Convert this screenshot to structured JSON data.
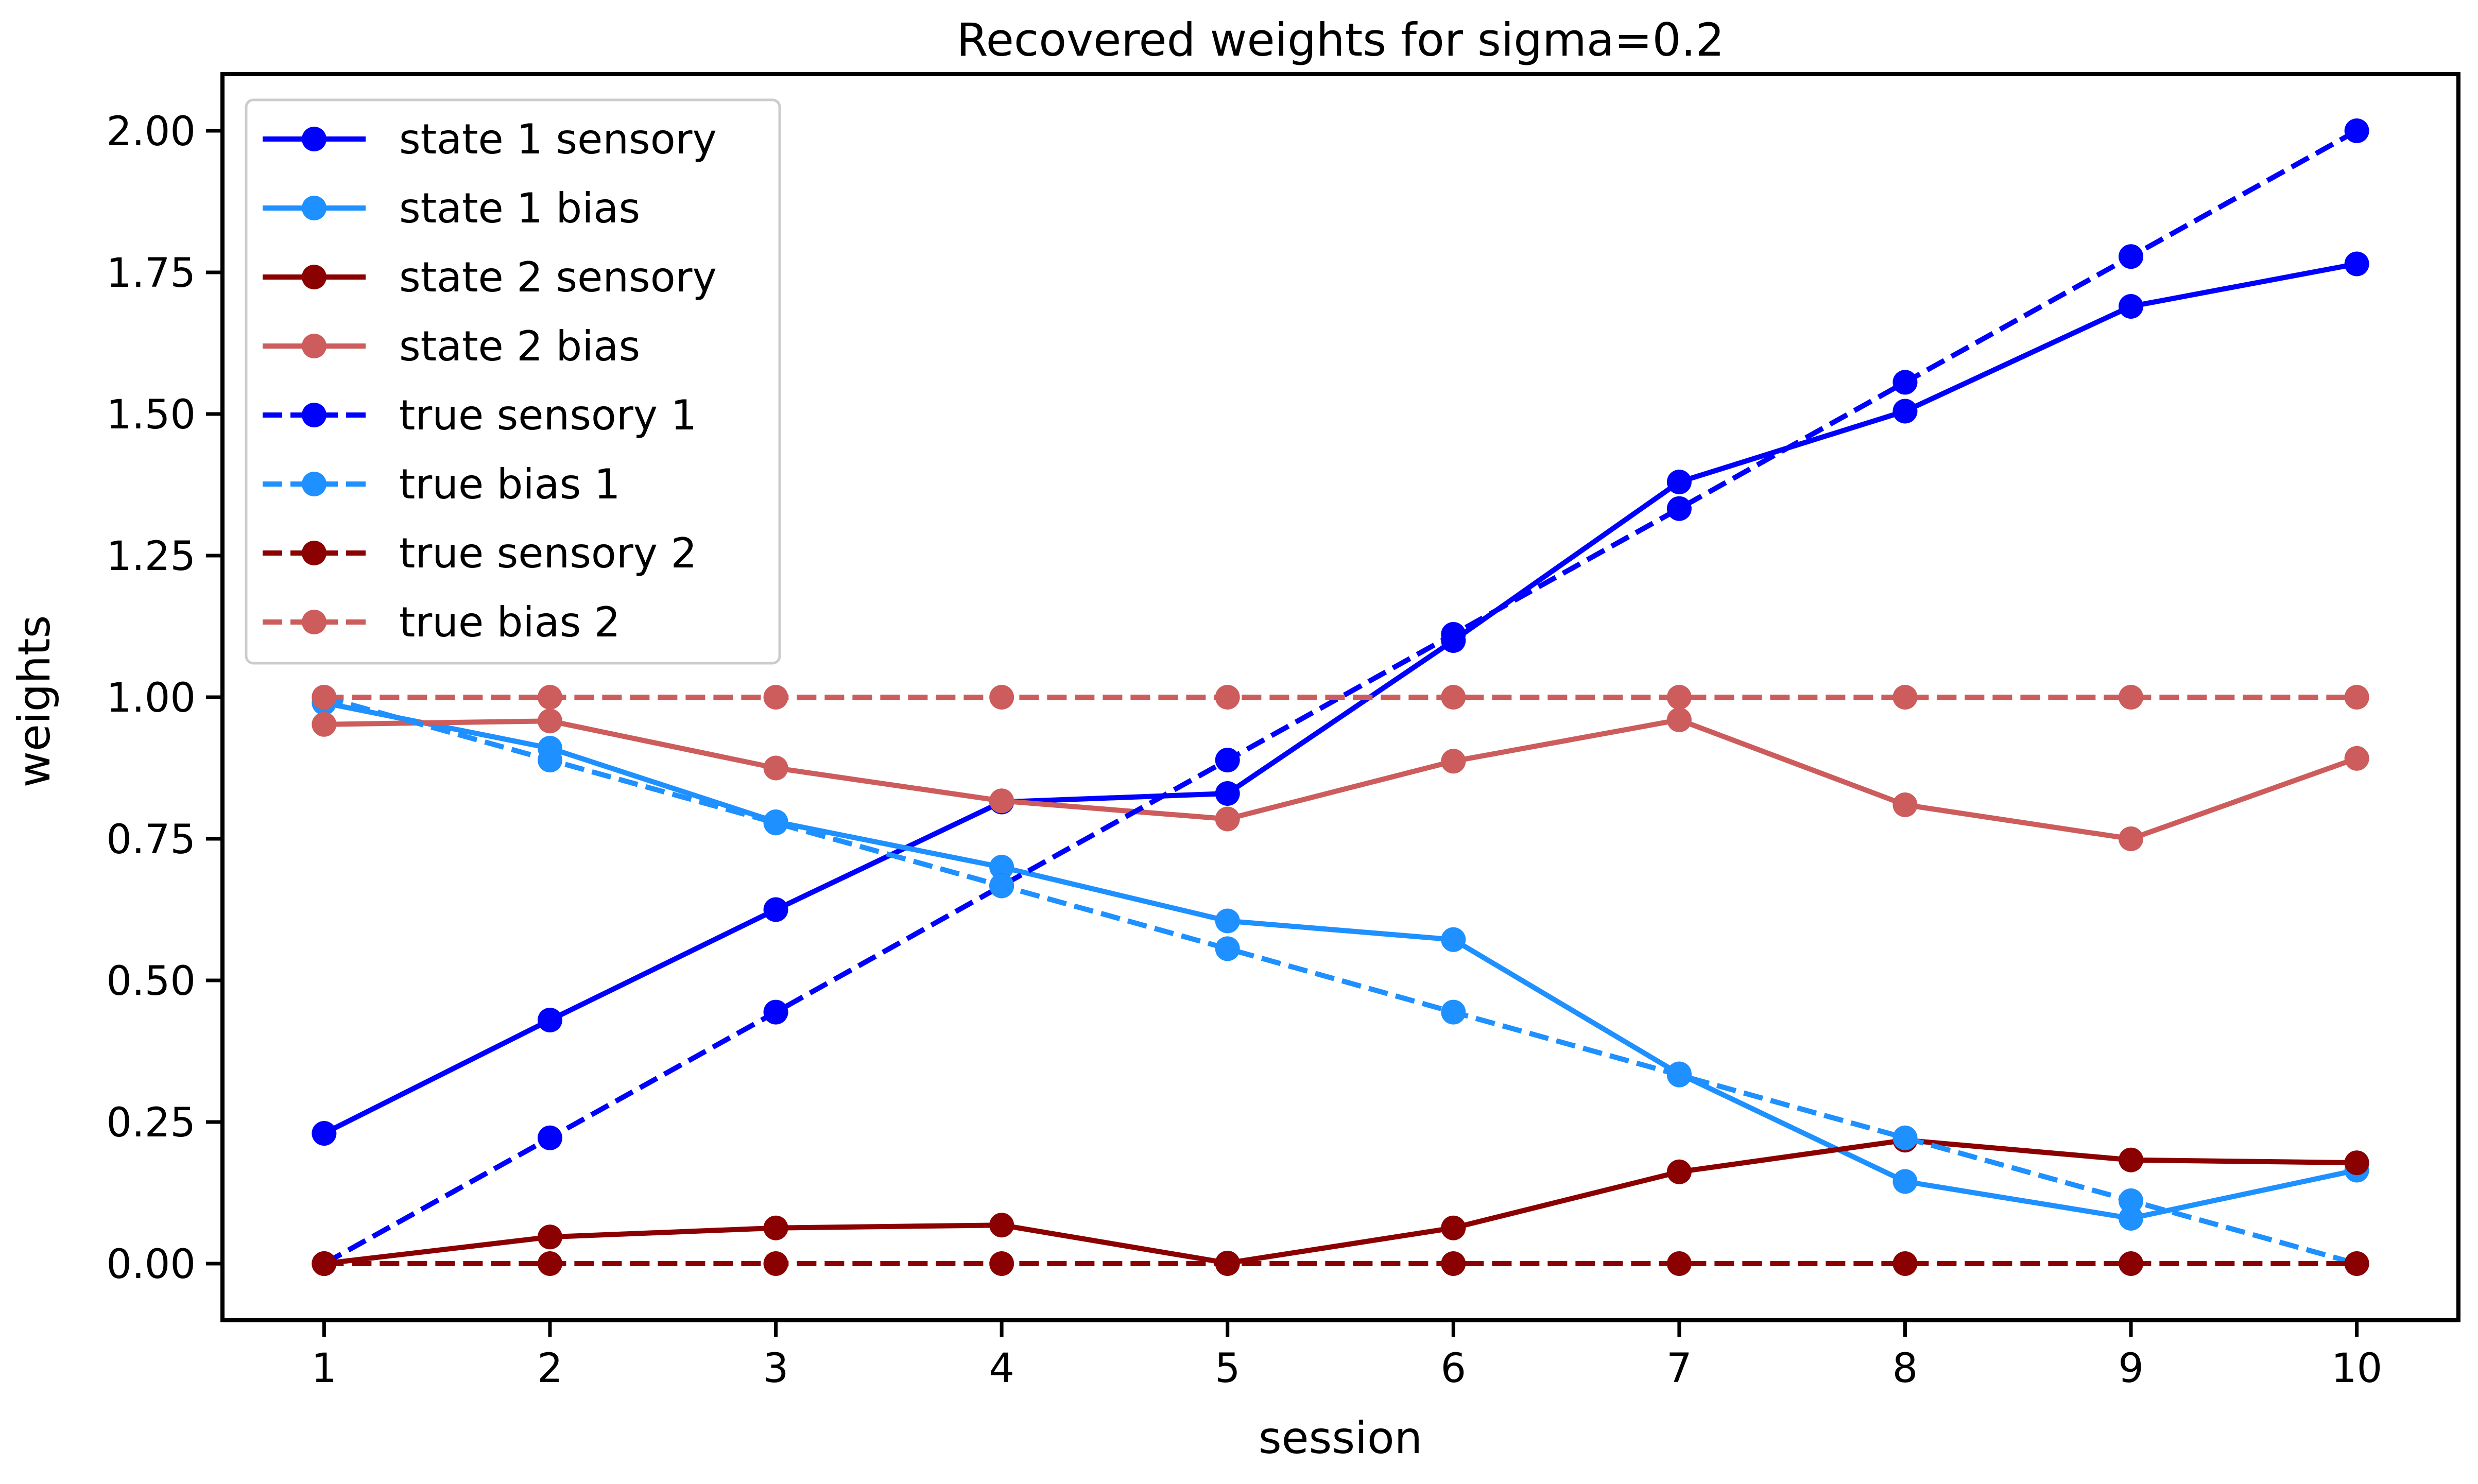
{
  "chart_data": {
    "type": "line",
    "title": "Recovered weights for sigma=0.2",
    "xlabel": "session",
    "ylabel": "weights",
    "x": [
      1,
      2,
      3,
      4,
      5,
      6,
      7,
      8,
      9,
      10
    ],
    "xlim": [
      0.55,
      10.45
    ],
    "ylim": [
      -0.1,
      2.1
    ],
    "xticks": [
      "1",
      "2",
      "3",
      "4",
      "5",
      "6",
      "7",
      "8",
      "9",
      "10"
    ],
    "yticks": [
      0.0,
      0.25,
      0.5,
      0.75,
      1.0,
      1.25,
      1.5,
      1.75,
      2.0
    ],
    "ytick_labels": [
      "0.00",
      "0.25",
      "0.50",
      "0.75",
      "1.00",
      "1.25",
      "1.50",
      "1.75",
      "2.00"
    ],
    "grid": false,
    "legend_position": "top-left",
    "series": [
      {
        "name": "state 1 sensory",
        "color": "#0000ff",
        "style": "solid",
        "values": [
          0.23,
          0.43,
          0.625,
          0.815,
          0.83,
          1.1,
          1.38,
          1.505,
          1.69,
          1.765
        ]
      },
      {
        "name": "state 1 bias",
        "color": "#1e90ff",
        "style": "solid",
        "values": [
          0.99,
          0.91,
          0.78,
          0.7,
          0.605,
          0.572,
          0.335,
          0.145,
          0.08,
          0.165
        ]
      },
      {
        "name": "state 2 sensory",
        "color": "#8b0000",
        "style": "solid",
        "values": [
          0.0,
          0.047,
          0.063,
          0.068,
          0.001,
          0.063,
          0.162,
          0.218,
          0.183,
          0.178
        ]
      },
      {
        "name": "state 2 bias",
        "color": "#cd5c5c",
        "style": "solid",
        "values": [
          0.952,
          0.958,
          0.875,
          0.817,
          0.785,
          0.887,
          0.96,
          0.81,
          0.75,
          0.892
        ]
      },
      {
        "name": "true sensory 1",
        "color": "#0000ff",
        "style": "dashed",
        "values": [
          0.0,
          0.222,
          0.444,
          0.667,
          0.889,
          1.111,
          1.333,
          1.556,
          1.778,
          2.0
        ]
      },
      {
        "name": "true bias 1",
        "color": "#1e90ff",
        "style": "dashed",
        "values": [
          1.0,
          0.889,
          0.778,
          0.667,
          0.556,
          0.444,
          0.333,
          0.222,
          0.111,
          0.0
        ]
      },
      {
        "name": "true sensory 2",
        "color": "#8b0000",
        "style": "dashed",
        "values": [
          0.0,
          0.0,
          0.0,
          0.0,
          0.0,
          0.0,
          0.0,
          0.0,
          0.0,
          0.0
        ]
      },
      {
        "name": "true bias 2",
        "color": "#cd5c5c",
        "style": "dashed",
        "values": [
          1.0,
          1.0,
          1.0,
          1.0,
          1.0,
          1.0,
          1.0,
          1.0,
          1.0,
          1.0
        ]
      }
    ]
  }
}
